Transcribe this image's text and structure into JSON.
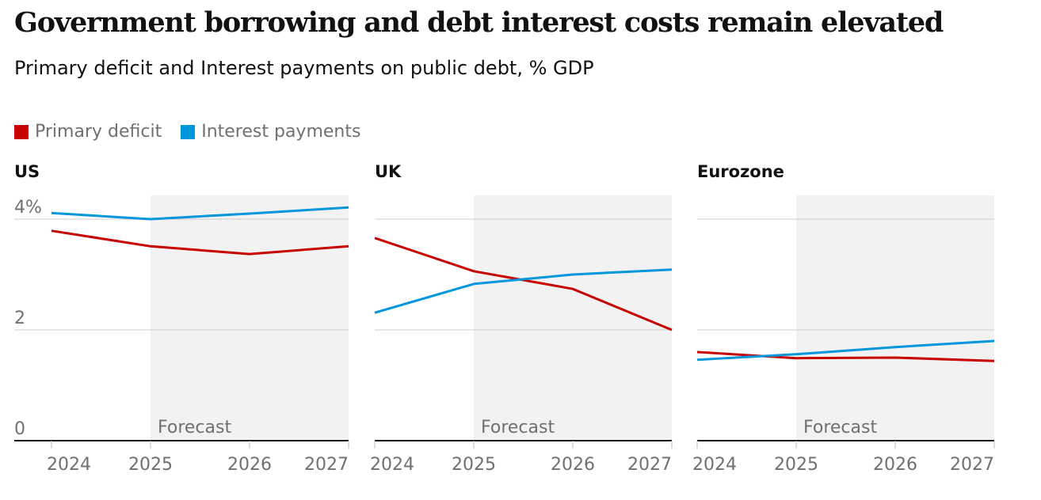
{
  "title": "Government borrowing and debt interest costs remain elevated",
  "subtitle": "Primary deficit and Interest payments on public debt, % GDP",
  "legend": [
    {
      "label": "Primary deficit",
      "color": "#c70000"
    },
    {
      "label": "Interest payments",
      "color": "#0096db"
    }
  ],
  "chart_data": [
    {
      "type": "line",
      "title": "US",
      "categories": [
        "2024",
        "2025",
        "2026",
        "2027"
      ],
      "y_ticks": [
        "4%",
        "2",
        "0"
      ],
      "ylim": [
        0,
        4.4
      ],
      "forecast_label": "Forecast",
      "forecast_from": "2025",
      "series": [
        {
          "name": "Primary deficit",
          "values": [
            3.79,
            3.51,
            3.37,
            3.51
          ]
        },
        {
          "name": "Interest payments",
          "values": [
            4.11,
            4.0,
            4.1,
            4.21
          ]
        }
      ]
    },
    {
      "type": "line",
      "title": "UK",
      "categories": [
        "2024",
        "2025",
        "2026",
        "2027"
      ],
      "ylim": [
        0,
        4.4
      ],
      "forecast_label": "Forecast",
      "forecast_from": "2025",
      "series": [
        {
          "name": "Primary deficit",
          "values": [
            3.66,
            3.06,
            2.74,
            2.0
          ]
        },
        {
          "name": "Interest payments",
          "values": [
            2.31,
            2.83,
            3.0,
            3.09
          ]
        }
      ]
    },
    {
      "type": "line",
      "title": "Eurozone",
      "categories": [
        "2024",
        "2025",
        "2026",
        "2027"
      ],
      "ylim": [
        0,
        4.4
      ],
      "forecast_label": "Forecast",
      "forecast_from": "2025",
      "series": [
        {
          "name": "Primary deficit",
          "values": [
            1.6,
            1.49,
            1.5,
            1.44
          ]
        },
        {
          "name": "Interest payments",
          "values": [
            1.46,
            1.56,
            1.69,
            1.8
          ]
        }
      ]
    }
  ]
}
